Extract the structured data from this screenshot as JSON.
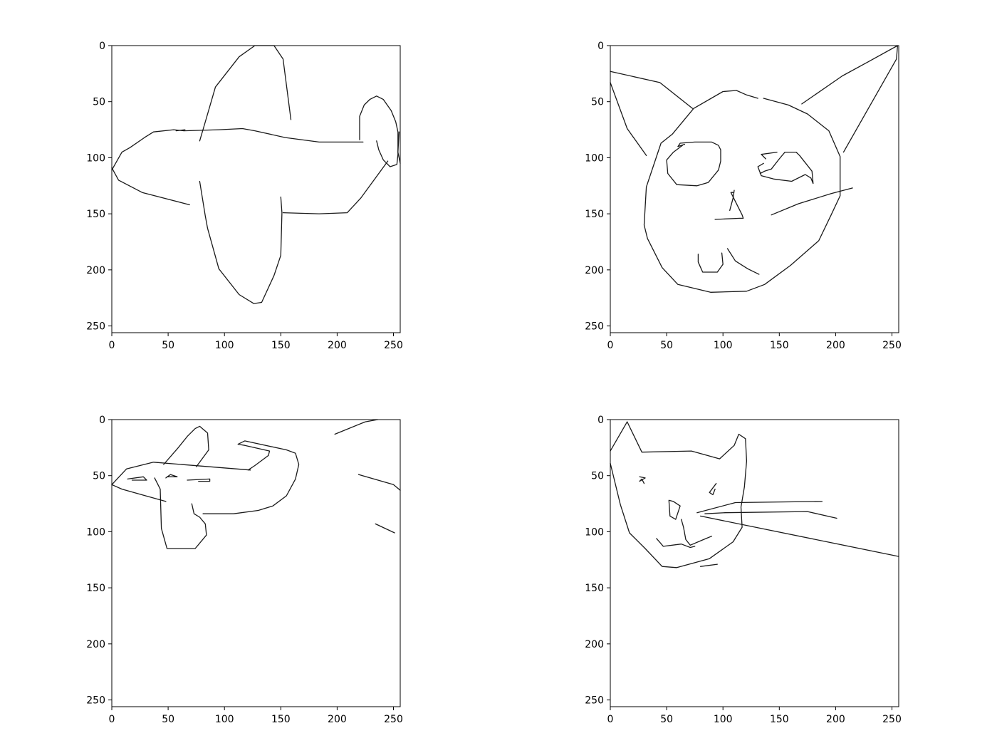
{
  "figure": {
    "layout": "2x2 grid of sketch plots",
    "line_color": "#1a1a1a"
  },
  "chart_data": [
    {
      "type": "line",
      "xlim": [
        0,
        256
      ],
      "ylim": [
        256,
        0
      ],
      "xticks": [
        0,
        50,
        100,
        150,
        200,
        250
      ],
      "yticks": [
        0,
        50,
        100,
        150,
        200,
        250
      ],
      "xtick_labels": [
        "0",
        "50",
        "100",
        "150",
        "200",
        "250"
      ],
      "ytick_labels": [
        "0",
        "50",
        "100",
        "150",
        "200",
        "250"
      ],
      "series": [
        {
          "x": [
            78,
            83,
            92,
            113,
            127,
            144,
            152,
            159
          ],
          "y": [
            85,
            68,
            37,
            10,
            0,
            0,
            12,
            66
          ]
        },
        {
          "x": [
            57,
            65
          ],
          "y": [
            76,
            75
          ]
        },
        {
          "x": [
            0,
            9,
            16,
            29,
            37,
            55,
            64,
            95,
            116,
            127,
            154,
            184,
            223
          ],
          "y": [
            111,
            95,
            91,
            82,
            77,
            75,
            76,
            75,
            74,
            76,
            82,
            86,
            86
          ]
        },
        {
          "x": [
            220,
            220,
            224,
            229,
            235,
            241,
            248,
            252,
            254,
            254,
            253,
            247,
            241,
            237,
            235
          ],
          "y": [
            84,
            63,
            53,
            48,
            45,
            48,
            58,
            68,
            77,
            97,
            106,
            108,
            102,
            93,
            85
          ]
        },
        {
          "x": [
            255,
            254,
            256
          ],
          "y": [
            77,
            95,
            105
          ]
        },
        {
          "x": [
            0,
            6,
            27,
            69
          ],
          "y": [
            109,
            120,
            131,
            142
          ]
        },
        {
          "x": [
            78,
            83,
            85,
            95,
            113,
            126,
            133,
            144,
            150,
            151,
            150
          ],
          "y": [
            121,
            152,
            163,
            199,
            222,
            230,
            229,
            205,
            187,
            149,
            135
          ]
        },
        {
          "x": [
            152,
            184,
            209,
            221,
            245
          ],
          "y": [
            149,
            150,
            149,
            136,
            103
          ]
        }
      ]
    },
    {
      "type": "line",
      "xlim": [
        0,
        256
      ],
      "ylim": [
        256,
        0
      ],
      "xticks": [
        0,
        50,
        100,
        150,
        200,
        250
      ],
      "yticks": [
        0,
        50,
        100,
        150,
        200,
        250
      ],
      "xtick_labels": [
        "0",
        "50",
        "100",
        "150",
        "200",
        "250"
      ],
      "ytick_labels": [
        "0",
        "50",
        "100",
        "150",
        "200",
        "250"
      ],
      "series": [
        {
          "x": [
            0,
            44,
            73
          ],
          "y": [
            23,
            33,
            56
          ]
        },
        {
          "x": [
            0,
            15,
            32
          ],
          "y": [
            33,
            74,
            98
          ]
        },
        {
          "x": [
            74,
            100,
            112,
            121,
            131
          ],
          "y": [
            56,
            41,
            40,
            44,
            47
          ]
        },
        {
          "x": [
            136,
            158,
            175,
            194,
            204,
            204,
            196,
            185,
            160,
            137,
            121,
            89,
            60,
            46,
            33,
            30,
            32,
            45,
            55,
            74
          ],
          "y": [
            47,
            53,
            61,
            76,
            99,
            134,
            151,
            174,
            196,
            213,
            219,
            220,
            213,
            198,
            172,
            160,
            126,
            87,
            79,
            56
          ]
        },
        {
          "x": [
            170,
            206,
            228,
            255,
            254,
            207
          ],
          "y": [
            52,
            27,
            15,
            0,
            12,
            95
          ]
        },
        {
          "x": [
            64,
            56,
            50,
            51,
            59,
            77,
            87,
            96,
            98,
            98,
            96,
            90,
            75,
            62,
            60,
            66
          ],
          "y": [
            89,
            95,
            102,
            114,
            124,
            125,
            122,
            111,
            103,
            93,
            89,
            86,
            86,
            87,
            90,
            88
          ]
        },
        {
          "x": [
            133,
            137,
            143,
            150,
            155,
            165,
            168,
            179,
            180,
            178,
            173,
            161,
            145,
            134,
            131,
            136
          ],
          "y": [
            114,
            112,
            110,
            101,
            95,
            95,
            98,
            112,
            123,
            118,
            115,
            121,
            119,
            116,
            108,
            105
          ]
        },
        {
          "x": [
            148,
            134,
            138
          ],
          "y": [
            95,
            97,
            101
          ]
        },
        {
          "x": [
            93,
            115,
            118,
            117,
            107,
            109
          ],
          "y": [
            155,
            154,
            154,
            151,
            131,
            131
          ]
        },
        {
          "x": [
            106,
            109,
            110
          ],
          "y": [
            147,
            136,
            129
          ]
        },
        {
          "x": [
            78,
            78,
            82,
            95,
            100,
            99
          ],
          "y": [
            186,
            193,
            202,
            202,
            195,
            185
          ]
        },
        {
          "x": [
            104,
            111,
            122,
            132
          ],
          "y": [
            181,
            192,
            199,
            204
          ]
        },
        {
          "x": [
            143,
            167,
            196,
            215
          ],
          "y": [
            151,
            141,
            132,
            127
          ]
        }
      ]
    },
    {
      "type": "line",
      "xlim": [
        0,
        256
      ],
      "ylim": [
        256,
        0
      ],
      "xticks": [
        0,
        50,
        100,
        150,
        200,
        250
      ],
      "yticks": [
        0,
        50,
        100,
        150,
        200,
        250
      ],
      "xtick_labels": [
        "0",
        "50",
        "100",
        "150",
        "200",
        "250"
      ],
      "ytick_labels": [
        "0",
        "50",
        "100",
        "150",
        "200",
        "250"
      ],
      "series": [
        {
          "x": [
            46,
            59,
            67,
            74,
            78,
            85,
            86,
            75
          ],
          "y": [
            40,
            25,
            15,
            8,
            6,
            12,
            27,
            42
          ]
        },
        {
          "x": [
            0,
            13,
            37,
            123,
            123
          ],
          "y": [
            58,
            44,
            38,
            45,
            45
          ]
        },
        {
          "x": [
            121,
            127,
            139,
            140,
            118,
            112,
            118,
            155,
            163,
            166,
            163,
            155,
            143,
            130,
            108,
            81
          ],
          "y": [
            45,
            41,
            32,
            28,
            23,
            22,
            19,
            27,
            30,
            40,
            53,
            68,
            77,
            81,
            84,
            84
          ]
        },
        {
          "x": [
            0,
            9,
            30,
            48
          ],
          "y": [
            58,
            62,
            68,
            73
          ]
        },
        {
          "x": [
            38,
            43,
            44,
            49,
            60,
            74,
            84,
            83,
            78,
            73,
            71
          ],
          "y": [
            52,
            62,
            97,
            115,
            115,
            115,
            103,
            93,
            87,
            84,
            75
          ]
        },
        {
          "x": [
            14,
            28,
            31,
            18
          ],
          "y": [
            53,
            51,
            54,
            54
          ]
        },
        {
          "x": [
            48,
            52,
            58,
            49
          ],
          "y": [
            52,
            49,
            51,
            51
          ]
        },
        {
          "x": [
            67,
            87,
            87,
            77
          ],
          "y": [
            54,
            53,
            55,
            55
          ]
        },
        {
          "x": [
            198,
            225,
            236
          ],
          "y": [
            13,
            2,
            0
          ]
        },
        {
          "x": [
            219,
            250,
            256
          ],
          "y": [
            49,
            58,
            63
          ]
        },
        {
          "x": [
            234,
            251
          ],
          "y": [
            93,
            101
          ]
        }
      ]
    },
    {
      "type": "line",
      "xlim": [
        0,
        256
      ],
      "ylim": [
        256,
        0
      ],
      "xticks": [
        0,
        50,
        100,
        150,
        200,
        250
      ],
      "yticks": [
        0,
        50,
        100,
        150,
        200,
        250
      ],
      "xtick_labels": [
        "0",
        "50",
        "100",
        "150",
        "200",
        "250"
      ],
      "ytick_labels": [
        "0",
        "50",
        "100",
        "150",
        "200",
        "250"
      ],
      "series": [
        {
          "x": [
            0,
            15,
            28,
            72,
            97,
            110,
            114,
            120,
            121,
            119,
            116,
            117,
            109,
            88,
            59,
            46,
            31,
            17,
            9,
            0
          ],
          "y": [
            28,
            2,
            29,
            28,
            35,
            23,
            13,
            17,
            37,
            60,
            78,
            96,
            109,
            124,
            132,
            131,
            115,
            101,
            76,
            39
          ]
        },
        {
          "x": [
            26,
            31,
            26,
            28,
            30
          ],
          "y": [
            51,
            52,
            55,
            53,
            57
          ]
        },
        {
          "x": [
            94,
            88,
            91,
            93
          ],
          "y": [
            57,
            65,
            67,
            62
          ]
        },
        {
          "x": [
            52,
            53,
            58,
            62,
            56,
            52
          ],
          "y": [
            72,
            86,
            89,
            77,
            73,
            72
          ]
        },
        {
          "x": [
            41,
            47,
            63,
            71,
            75
          ],
          "y": [
            106,
            113,
            111,
            114,
            113
          ]
        },
        {
          "x": [
            63,
            65,
            67,
            71,
            85,
            90
          ],
          "y": [
            89,
            96,
            107,
            112,
            106,
            104
          ]
        },
        {
          "x": [
            77,
            111,
            188
          ],
          "y": [
            83,
            74,
            73
          ]
        },
        {
          "x": [
            84,
            102,
            175,
            201
          ],
          "y": [
            84,
            83,
            82,
            88
          ]
        },
        {
          "x": [
            80,
            256
          ],
          "y": [
            86,
            122
          ]
        },
        {
          "x": [
            80,
            95
          ],
          "y": [
            131,
            129
          ]
        }
      ]
    }
  ]
}
